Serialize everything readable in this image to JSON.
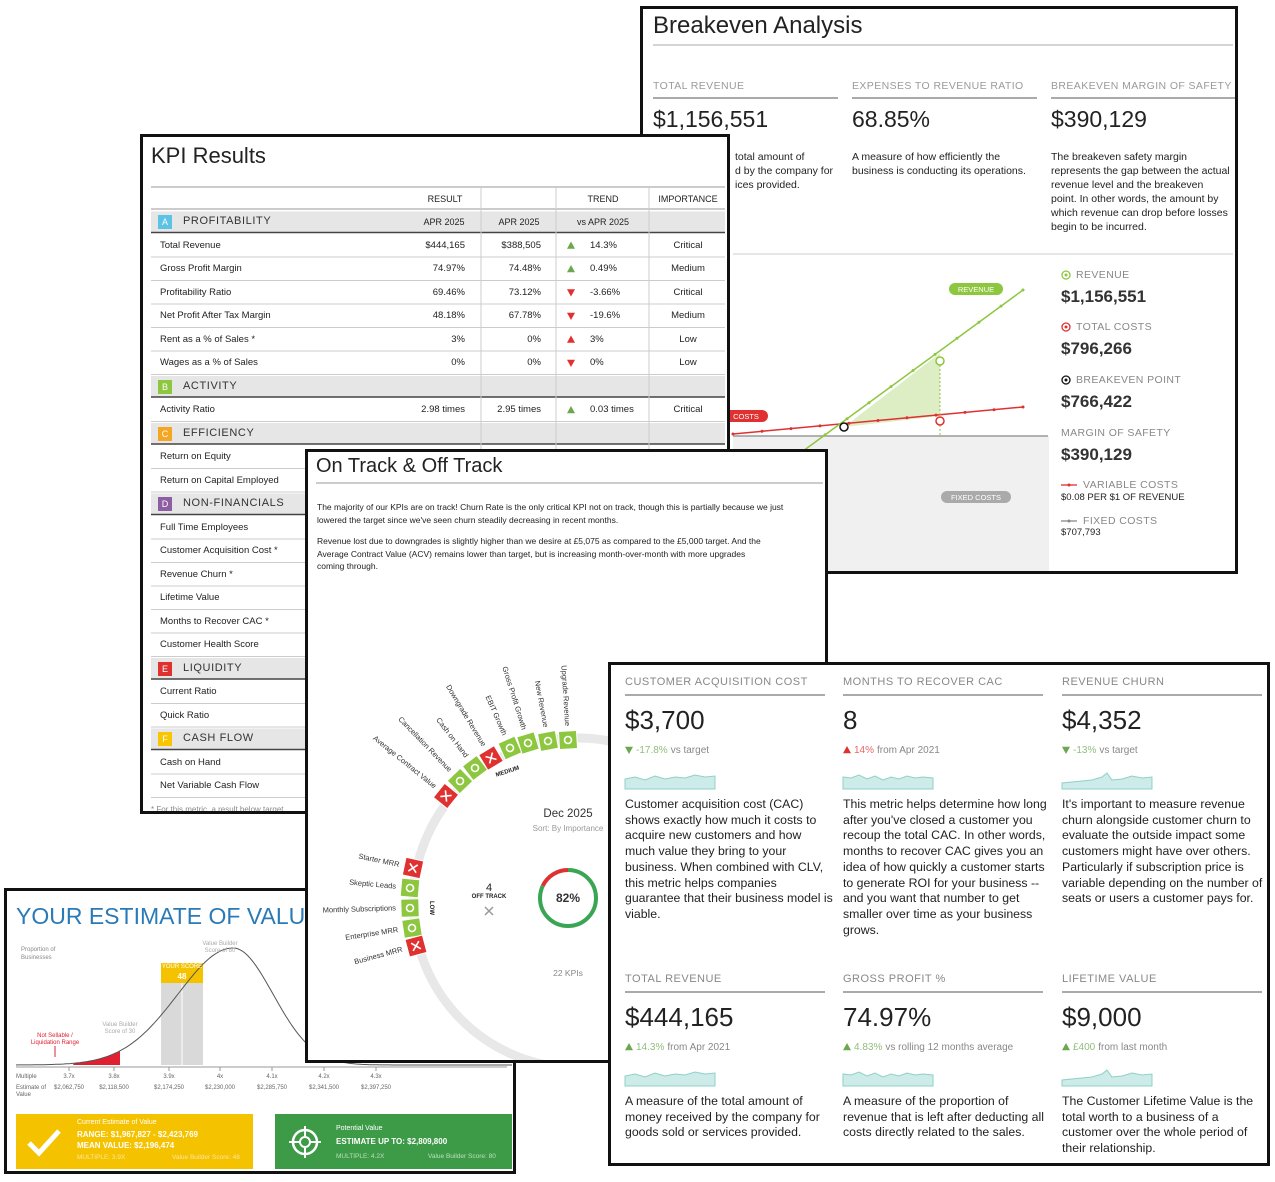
{
  "breakeven": {
    "title": "Breakeven Analysis",
    "metrics": [
      {
        "label": "TOTAL REVENUE",
        "value": "$1,156,551",
        "description": [
          "total amount of",
          "d by the company for",
          "ices provided."
        ]
      },
      {
        "label": "EXPENSES TO REVENUE RATIO",
        "value": "68.85%",
        "description": [
          "A measure of how efficiently the",
          "business is conducting its operations."
        ]
      },
      {
        "label": "BREAKEVEN MARGIN OF SAFETY",
        "value": "$390,129",
        "description": [
          "The breakeven safety margin",
          "represents the gap between the actual",
          "revenue level and the breakeven",
          "point. In other words, the amount by",
          "which revenue can drop before losses",
          "begin to be incurred."
        ]
      }
    ],
    "chart_labels": [
      "REVENUE",
      "COSTS",
      "FIXED COSTS"
    ],
    "legend": [
      {
        "label": "REVENUE",
        "value": "$1,156,551"
      },
      {
        "label": "TOTAL COSTS",
        "value": "$796,266"
      },
      {
        "label": "BREAKEVEN POINT",
        "value": "$766,422"
      },
      {
        "label": "MARGIN OF SAFETY",
        "value": "$390,129"
      },
      {
        "label": "VARIABLE COSTS",
        "value": "$0.08 PER $1 OF REVENUE"
      },
      {
        "label": "FIXED COSTS",
        "value": "$707,793"
      }
    ]
  },
  "kpi": {
    "title": "KPI Results",
    "headers": [
      "RESULT",
      "TREND",
      "IMPORTANCE"
    ],
    "subheaders": [
      "APR 2025",
      "APR 2025",
      "vs APR 2025"
    ],
    "sections": [
      {
        "letter": "A",
        "name": "PROFITABILITY",
        "color": "#5bc4e5",
        "rows": [
          {
            "name": "Total Revenue",
            "result": "$444,165",
            "previous": "$388,505",
            "arrow": "up",
            "arrow_color": "#6aa84f",
            "trend": "14.3%",
            "importance": "Critical"
          },
          {
            "name": "Gross Profit Margin",
            "result": "74.97%",
            "previous": "74.48%",
            "arrow": "up",
            "arrow_color": "#6aa84f",
            "trend": "0.49%",
            "importance": "Medium"
          },
          {
            "name": "Profitability Ratio",
            "result": "69.46%",
            "previous": "73.12%",
            "arrow": "down",
            "arrow_color": "#e03131",
            "trend": "-3.66%",
            "importance": "Critical"
          },
          {
            "name": "Net Profit After Tax Margin",
            "result": "48.18%",
            "previous": "67.78%",
            "arrow": "down",
            "arrow_color": "#e03131",
            "trend": "-19.6%",
            "importance": "Medium"
          },
          {
            "name": "Rent as a % of Sales *",
            "result": "3%",
            "previous": "0%",
            "arrow": "up",
            "arrow_color": "#e03131",
            "trend": "3%",
            "importance": "Low"
          },
          {
            "name": "Wages as a % of Sales",
            "result": "0%",
            "previous": "0%",
            "arrow": "down",
            "arrow_color": "#e03131",
            "trend": "0%",
            "importance": "Low"
          }
        ]
      },
      {
        "letter": "B",
        "name": "ACTIVITY",
        "color": "#8dc63f",
        "rows": [
          {
            "name": "Activity Ratio",
            "result": "2.98 times",
            "previous": "2.95 times",
            "arrow": "up",
            "arrow_color": "#6aa84f",
            "trend": "0.03 times",
            "importance": "Critical"
          }
        ]
      },
      {
        "letter": "C",
        "name": "EFFICIENCY",
        "color": "#f5a623",
        "rows": [
          {
            "name": "Return on Equity"
          },
          {
            "name": "Return on Capital Employed"
          }
        ]
      },
      {
        "letter": "D",
        "name": "NON-FINANCIALS",
        "color": "#8e5ea2",
        "rows": [
          {
            "name": "Full Time Employees"
          },
          {
            "name": "Customer Acquisition Cost *"
          },
          {
            "name": "Revenue Churn *"
          },
          {
            "name": "Lifetime Value"
          },
          {
            "name": "Months to Recover CAC *"
          },
          {
            "name": "Customer Health Score"
          }
        ]
      },
      {
        "letter": "E",
        "name": "LIQUIDITY",
        "color": "#e03131",
        "rows": [
          {
            "name": "Current Ratio"
          },
          {
            "name": "Quick Ratio"
          }
        ]
      },
      {
        "letter": "F",
        "name": "CASH FLOW",
        "color": "#f7c600",
        "rows": [
          {
            "name": "Cash on Hand"
          },
          {
            "name": "Net Variable Cash Flow"
          }
        ]
      }
    ],
    "footnote": "* For this metric, a result below target"
  },
  "ontrack": {
    "title": "On Track & Off Track",
    "paragraphs": [
      [
        "The majority of our KPIs are on track! Churn Rate is the only critical KPI not on track, though this is partially because we just",
        "lowered the target since we've seen churn steadily decreasing in recent months."
      ],
      [
        "Revenue lost due to downgrades is slightly higher than we desire at £5,075 as compared to the £5,000 target. And the",
        "Average Contract Value (ACV) remains lower than target, but is increasing month-over-month with more upgrades",
        "coming through."
      ]
    ],
    "medium": {
      "label": "MEDIUM",
      "items": [
        {
          "name": "Average Contract Value",
          "status": "off"
        },
        {
          "name": "Cancellation Revenue",
          "status": "on"
        },
        {
          "name": "Cash on Hand",
          "status": "on"
        },
        {
          "name": "Downgrade Revenue",
          "status": "off"
        },
        {
          "name": "EBIT Growth",
          "status": "on"
        },
        {
          "name": "Gross Profit Growth",
          "status": "on"
        },
        {
          "name": "New Revenue",
          "status": "on"
        },
        {
          "name": "Upgrade Revenue",
          "status": "on"
        }
      ]
    },
    "low": {
      "label": "LOW",
      "items": [
        {
          "name": "Starter MRR",
          "status": "off"
        },
        {
          "name": "Skeptic Leads",
          "status": "on"
        },
        {
          "name": "Monthly Subscriptions",
          "status": "on"
        },
        {
          "name": "Enterprise MRR",
          "status": "on"
        },
        {
          "name": "Business MRR",
          "status": "off"
        }
      ]
    },
    "date": "Dec 2025",
    "sort": "Sort: By Importance",
    "off_track_count": 4,
    "off_track_label": "OFF TRACK",
    "gauge": {
      "value": 82,
      "label": "82%"
    },
    "kpi_count": "22 KPIs"
  },
  "estimate": {
    "title": "YOUR ESTIMATE OF VALUE",
    "y_label": [
      "Proportion of",
      "Businesses"
    ],
    "high_score": [
      "Value Builder",
      "Score of 80"
    ],
    "your_score": "YOUR SCORE",
    "score": "48",
    "low_range": [
      "Not Sellable /",
      "Liquidation Range"
    ],
    "low_score": [
      "Value Builder",
      "Score of 30"
    ],
    "row_labels": [
      "Multiple",
      "Estimate of",
      "Value"
    ],
    "multiples": [
      "3.7x",
      "3.8x",
      "3.9x",
      "4x",
      "4.1x",
      "4.2x",
      "4.3x"
    ],
    "values": [
      "$2,062,750",
      "$2,118,500",
      "$2,174,250",
      "$2,230,000",
      "$2,285,750",
      "$2,341,500",
      "$2,397,250"
    ],
    "current": {
      "title": "Current Estimate of Value",
      "range": "RANGE: $1,967,827 - $2,423,769",
      "mean": "MEAN VALUE: $2,196,474",
      "multiple": "MULTIPLE: 3.9X",
      "score": "Value Builder Score: 48"
    },
    "potential": {
      "title": "Potential Value",
      "estimate": "ESTIMATE UP TO: $2,809,800",
      "multiple": "MULTIPLE: 4.2X",
      "score": "Value Builder Score: 80"
    }
  },
  "cards": [
    {
      "label": "CUSTOMER ACQUISITION COST",
      "value": "$3,700",
      "arrow": "down",
      "arrow_color": "#6aa84f",
      "delta": "-17.8%",
      "delta_text": "vs target",
      "description": [
        "Customer acquisition cost (CAC)",
        "shows exactly how much it costs to",
        "acquire new customers and how",
        "much value they bring to your",
        "business. When combined with CLV,",
        "this metric helps companies",
        "guarantee that their business model is",
        "viable."
      ]
    },
    {
      "label": "MONTHS TO RECOVER CAC",
      "value": "8",
      "arrow": "up",
      "arrow_color": "#e03131",
      "delta": "14%",
      "delta_text": "from Apr 2021",
      "description": [
        "This metric helps determine how long",
        "after you've closed a customer you",
        "recoup the total CAC. In other words,",
        "months to recover CAC gives you an",
        "idea of how quickly a customer starts",
        "to generate ROI for your business --",
        "and you want that number to get",
        "smaller over time as your business",
        "grows."
      ]
    },
    {
      "label": "REVENUE CHURN",
      "value": "$4,352",
      "arrow": "down",
      "arrow_color": "#6aa84f",
      "delta": "-13%",
      "delta_text": "vs target",
      "description": [
        "It's important to measure revenue",
        "churn alongside customer churn to",
        "evaluate the outside impact some",
        "customers might have over others.",
        "Particularly if subscription price is",
        "variable depending on the number of",
        "seats or users a customer pays for."
      ]
    },
    {
      "label": "TOTAL REVENUE",
      "value": "$444,165",
      "arrow": "up",
      "arrow_color": "#6aa84f",
      "delta": "14.3%",
      "delta_text": "from Apr 2021",
      "description": [
        "A measure of the total amount of",
        "money received by the company for",
        "goods sold or services provided."
      ]
    },
    {
      "label": "GROSS PROFIT %",
      "value": "74.97%",
      "arrow": "up",
      "arrow_color": "#6aa84f",
      "delta": "4.83%",
      "delta_text": "vs rolling 12 months average",
      "description": [
        "A measure of the proportion of",
        "revenue that is left after deducting all",
        "costs directly related to the sales."
      ]
    },
    {
      "label": "LIFETIME VALUE",
      "value": "$9,000",
      "arrow": "up",
      "arrow_color": "#6aa84f",
      "delta": "£400",
      "delta_text": "from last month",
      "description": [
        "The Customer Lifetime Value is the",
        "total worth to a business of a",
        "customer over the whole period of",
        "their relationship."
      ]
    }
  ]
}
